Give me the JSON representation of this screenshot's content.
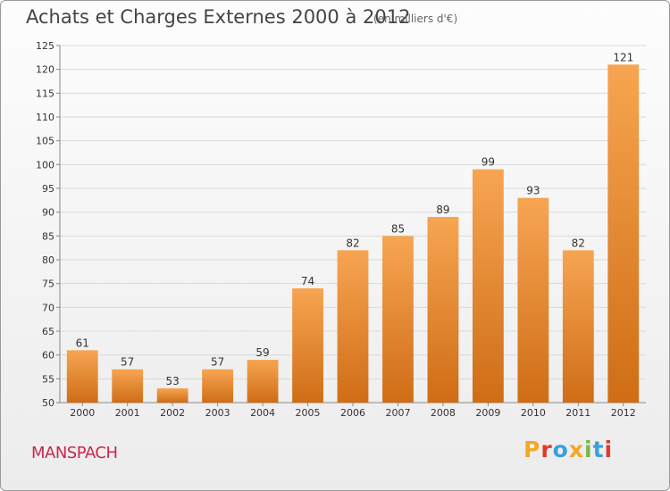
{
  "header": {
    "title": "Achats et Charges Externes 2000 à 2012",
    "unit": "(en milliers d'€)"
  },
  "footer": {
    "commune": "MANSPACH",
    "logo_text": "Proxiti",
    "logo_colors": [
      "#f5a623",
      "#e2392a",
      "#3aa0dc",
      "#f5a623",
      "#7ab648",
      "#3aa0dc",
      "#e2392a"
    ]
  },
  "colors": {
    "bar_top": "#f7a552",
    "bar_bottom": "#cf6d16",
    "grid": "#d8d8d8",
    "axis_text": "#333333",
    "commune": "#c8284f"
  },
  "chart_data": {
    "type": "bar",
    "categories": [
      "2000",
      "2001",
      "2002",
      "2003",
      "2004",
      "2005",
      "2006",
      "2007",
      "2008",
      "2009",
      "2010",
      "2011",
      "2012"
    ],
    "values": [
      61,
      57,
      53,
      57,
      59,
      74,
      82,
      85,
      89,
      99,
      93,
      82,
      121
    ],
    "ylim": [
      50,
      125
    ],
    "yticks": [
      50,
      55,
      60,
      65,
      70,
      75,
      80,
      85,
      90,
      95,
      100,
      105,
      110,
      115,
      120,
      125
    ],
    "grid": true,
    "data_labels": true
  }
}
